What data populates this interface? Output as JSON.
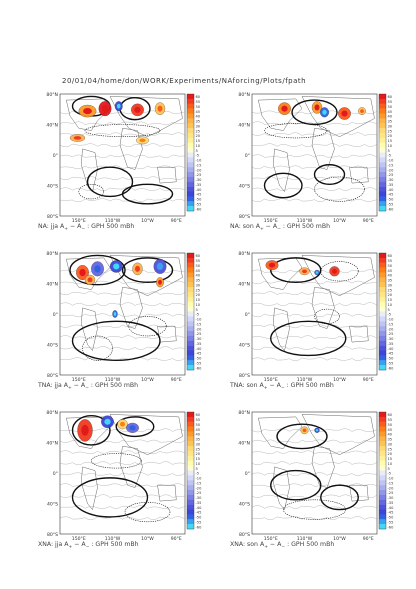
{
  "header": "20/01/04/home/don/WORK/Experiments/NAforcing/Plots/fpath",
  "lat_labels": [
    "80°N",
    "40°N",
    "0°",
    "40°S",
    "80°S"
  ],
  "lon_labels": [
    "150°E",
    "110°W",
    "10°W",
    "90°E"
  ],
  "colorbar": {
    "levels": [
      60,
      55,
      50,
      45,
      40,
      35,
      30,
      25,
      20,
      15,
      10,
      5,
      -5,
      -10,
      -15,
      -20,
      -25,
      -30,
      -35,
      -40,
      -45,
      -50,
      -55,
      -60
    ],
    "colors": [
      "#e31a1c",
      "#f03b20",
      "#fd5a1e",
      "#fd7e14",
      "#fd9a28",
      "#feb24c",
      "#fec44f",
      "#fed976",
      "#ffe680",
      "#fff199",
      "#fffdb0",
      "#ffffcc",
      "#e8ecfb",
      "#d4d9f7",
      "#bfc4f3",
      "#a9aeee",
      "#9397ea",
      "#7c80e5",
      "#6567e0",
      "#4f52da",
      "#3c46d8",
      "#2f63e3",
      "#3aa0ef",
      "#3fd9f7"
    ]
  },
  "panels": [
    {
      "id": "na-jja",
      "caption_prefix": "NA: jja A",
      "caption_mid": " − A",
      "caption_suffix": " : GPH 500 mBh"
    },
    {
      "id": "na-son",
      "caption_prefix": "NA: son A",
      "caption_mid": " − A",
      "caption_suffix": " : GPH 500 mBh"
    },
    {
      "id": "tna-jja",
      "caption_prefix": "TNA: jja A",
      "caption_mid": " − A",
      "caption_suffix": " : GPH 500 mBh"
    },
    {
      "id": "tna-son",
      "caption_prefix": "TNA: son A",
      "caption_mid": " − A",
      "caption_suffix": " : GPH 500 mBh"
    },
    {
      "id": "xna-jja",
      "caption_prefix": "XNA: jja A",
      "caption_mid": " − A",
      "caption_suffix": " : GPH 500 mBh"
    },
    {
      "id": "xna-son",
      "caption_prefix": "XNA: son A",
      "caption_mid": " − A",
      "caption_suffix": " : GPH 500 mBh"
    }
  ],
  "caption_sub_plus": "+",
  "caption_sub_minus": "−"
}
